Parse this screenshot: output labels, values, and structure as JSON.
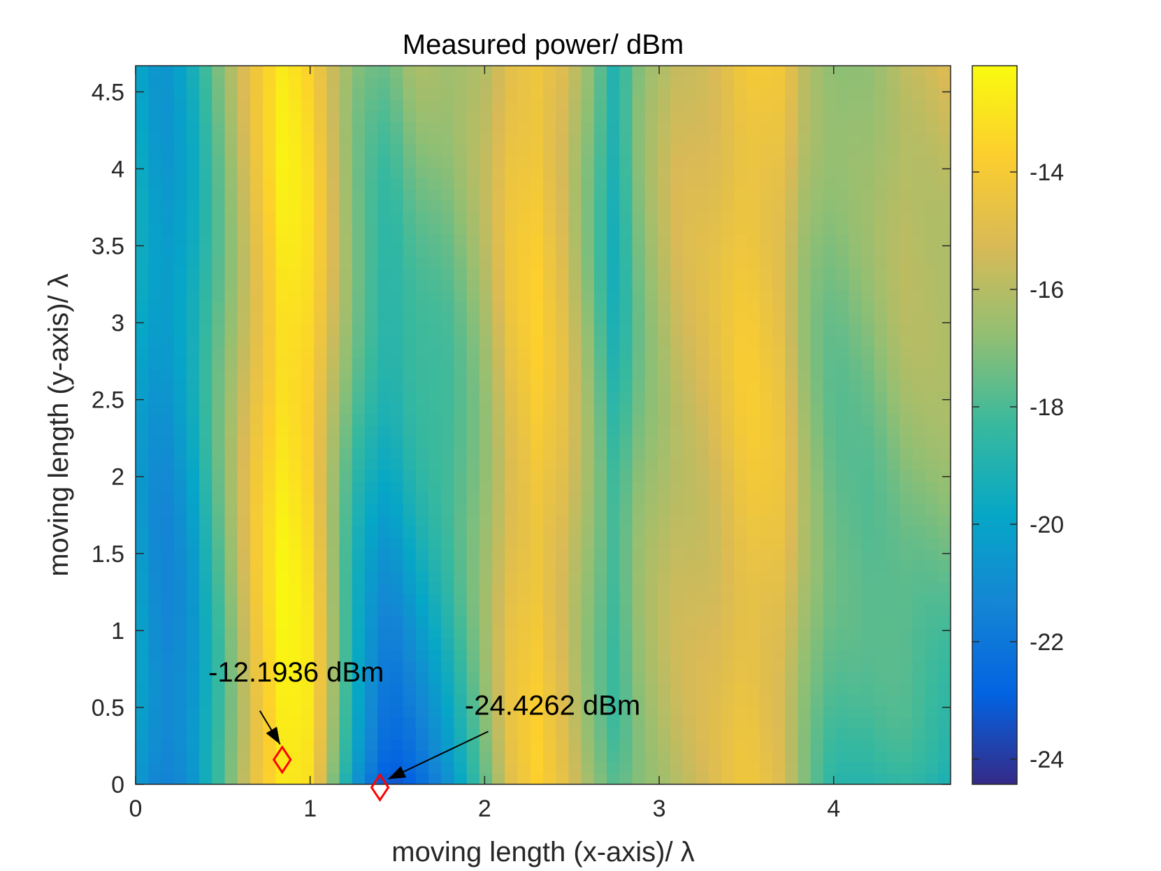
{
  "chart_data": {
    "type": "heatmap",
    "title": "Measured power/ dBm",
    "xlabel": "moving length (x-axis)/ λ",
    "ylabel": "moving length (y-axis)/ λ",
    "xlim": [
      0,
      4.67
    ],
    "ylim": [
      0,
      4.67
    ],
    "xticks": [
      0,
      1,
      2,
      3,
      4
    ],
    "yticks": [
      0,
      0.5,
      1,
      1.5,
      2,
      2.5,
      3,
      3.5,
      4,
      4.5
    ],
    "ytick_labels": [
      "0",
      "0.5",
      "1",
      "1.5",
      "2",
      "2.5",
      "3",
      "3.5",
      "4",
      "4.5"
    ],
    "colorbar": {
      "colormap": "parula",
      "range": [
        -24.43,
        -12.19
      ],
      "ticks": [
        -24,
        -22,
        -20,
        -18,
        -16,
        -14
      ],
      "tick_labels": [
        "-24",
        "-22",
        "-20",
        "-18",
        "-16",
        "-14"
      ]
    },
    "grid": false,
    "approx_column_profile": {
      "x": [
        0.0,
        0.15,
        0.3,
        0.5,
        0.7,
        0.85,
        1.0,
        1.15,
        1.3,
        1.45,
        1.6,
        1.8,
        2.0,
        2.15,
        2.3,
        2.45,
        2.6,
        2.75,
        2.9,
        3.1,
        3.3,
        3.5,
        3.7,
        3.85,
        4.0,
        4.2,
        4.4,
        4.67
      ],
      "value_top": [
        -19.5,
        -20.5,
        -19.5,
        -17.0,
        -14.5,
        -12.8,
        -13.5,
        -15.5,
        -17.0,
        -17.5,
        -16.5,
        -16.8,
        -16.0,
        -14.5,
        -14.0,
        -15.0,
        -17.0,
        -19.5,
        -17.0,
        -15.5,
        -15.0,
        -14.0,
        -14.5,
        -16.5,
        -17.0,
        -16.5,
        -15.5,
        -15.2
      ],
      "value_bottom": [
        -20.5,
        -22.0,
        -21.5,
        -18.0,
        -14.0,
        -12.4,
        -13.0,
        -18.0,
        -22.0,
        -24.0,
        -23.0,
        -20.5,
        -17.5,
        -15.0,
        -14.0,
        -15.0,
        -16.5,
        -17.5,
        -16.5,
        -16.0,
        -15.5,
        -14.5,
        -15.0,
        -17.0,
        -18.5,
        -19.0,
        -19.0,
        -19.5
      ]
    },
    "markers": [
      {
        "x": 0.84,
        "y": 0.16,
        "value_label": "-12.1936 dBm",
        "color": "#ff0000",
        "shape": "diamond"
      },
      {
        "x": 1.4,
        "y": -0.02,
        "value_label": "-24.4262 dBm",
        "color": "#ff0000",
        "shape": "diamond"
      }
    ]
  },
  "colors": {
    "marker": "#ff0000",
    "axis": "#262626",
    "text": "#000000"
  }
}
